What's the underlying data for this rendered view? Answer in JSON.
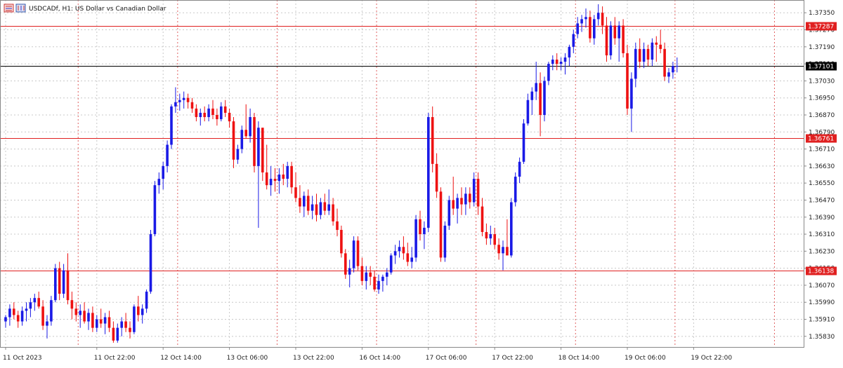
{
  "header": {
    "symbol": "USDCADf",
    "timeframe": "H1:",
    "description": "US Dollar vs Canadian Dollar"
  },
  "colors": {
    "bull": "#1a1ae6",
    "bear": "#ee1111",
    "level_line": "#e02020",
    "current_line": "#000000",
    "grid": "#c8c8c8",
    "separator": "#e06060"
  },
  "chart_data": {
    "type": "candlestick",
    "title": "",
    "ylim": [
      1.3578,
      1.3741
    ],
    "y_ticks": [
      "1.37350",
      "1.37270",
      "1.37190",
      "1.37110",
      "1.37030",
      "1.36950",
      "1.36870",
      "1.36790",
      "1.36710",
      "1.36630",
      "1.36550",
      "1.36470",
      "1.36390",
      "1.36310",
      "1.36230",
      "1.36150",
      "1.36070",
      "1.35990",
      "1.35910",
      "1.35830"
    ],
    "x_labels": [
      {
        "label": "11 Oct 2023",
        "bar": 0
      },
      {
        "label": "11 Oct 22:00",
        "bar": 22
      },
      {
        "label": "12 Oct 14:00",
        "bar": 38
      },
      {
        "label": "13 Oct 06:00",
        "bar": 54
      },
      {
        "label": "13 Oct 22:00",
        "bar": 70
      },
      {
        "label": "16 Oct 14:00",
        "bar": 86
      },
      {
        "label": "17 Oct 06:00",
        "bar": 102
      },
      {
        "label": "17 Oct 22:00",
        "bar": 118
      },
      {
        "label": "18 Oct 14:00",
        "bar": 134
      },
      {
        "label": "19 Oct 06:00",
        "bar": 150
      },
      {
        "label": "19 Oct 22:00",
        "bar": 166
      }
    ],
    "day_separators": [
      18,
      42,
      66,
      90,
      114,
      138,
      162,
      186
    ],
    "horizontal_levels": [
      {
        "label": "1.37287",
        "value": 1.37287,
        "kind": "level"
      },
      {
        "label": "1.37101",
        "value": 1.37101,
        "kind": "current"
      },
      {
        "label": "1.36761",
        "value": 1.36761,
        "kind": "level"
      },
      {
        "label": "1.36138",
        "value": 1.36138,
        "kind": "level"
      }
    ],
    "candles": [
      [
        1.359,
        1.3593,
        1.3587,
        1.3592
      ],
      [
        1.3592,
        1.3598,
        1.3588,
        1.3596
      ],
      [
        1.3596,
        1.3599,
        1.3591,
        1.3593
      ],
      [
        1.3593,
        1.3595,
        1.3587,
        1.359
      ],
      [
        1.359,
        1.3597,
        1.3588,
        1.3595
      ],
      [
        1.3595,
        1.3599,
        1.359,
        1.3596
      ],
      [
        1.3596,
        1.3601,
        1.3592,
        1.3599
      ],
      [
        1.3599,
        1.3603,
        1.3595,
        1.3601
      ],
      [
        1.3601,
        1.3604,
        1.3596,
        1.3597
      ],
      [
        1.3597,
        1.36,
        1.3586,
        1.3588
      ],
      [
        1.3588,
        1.3593,
        1.3582,
        1.359
      ],
      [
        1.359,
        1.3602,
        1.3588,
        1.36
      ],
      [
        1.36,
        1.3617,
        1.3599,
        1.3615
      ],
      [
        1.3615,
        1.3618,
        1.36,
        1.3603
      ],
      [
        1.3603,
        1.3617,
        1.3601,
        1.3614
      ],
      [
        1.3614,
        1.3622,
        1.3598,
        1.36
      ],
      [
        1.36,
        1.3604,
        1.3591,
        1.3596
      ],
      [
        1.3596,
        1.3599,
        1.359,
        1.3593
      ],
      [
        1.3593,
        1.3598,
        1.3587,
        1.3595
      ],
      [
        1.3595,
        1.3599,
        1.3589,
        1.359
      ],
      [
        1.359,
        1.3596,
        1.3586,
        1.3594
      ],
      [
        1.3594,
        1.3597,
        1.3585,
        1.3587
      ],
      [
        1.3587,
        1.3593,
        1.3585,
        1.3591
      ],
      [
        1.3591,
        1.3596,
        1.3587,
        1.3589
      ],
      [
        1.3589,
        1.3594,
        1.3584,
        1.3592
      ],
      [
        1.3592,
        1.3595,
        1.3585,
        1.3587
      ],
      [
        1.3587,
        1.359,
        1.358,
        1.3581
      ],
      [
        1.3581,
        1.3589,
        1.358,
        1.3587
      ],
      [
        1.3587,
        1.3592,
        1.3583,
        1.359
      ],
      [
        1.359,
        1.3594,
        1.3585,
        1.3587
      ],
      [
        1.3587,
        1.359,
        1.3582,
        1.3585
      ],
      [
        1.3585,
        1.3598,
        1.3584,
        1.3597
      ],
      [
        1.3597,
        1.3602,
        1.359,
        1.3593
      ],
      [
        1.3593,
        1.3598,
        1.3589,
        1.3596
      ],
      [
        1.3596,
        1.3605,
        1.3594,
        1.3604
      ],
      [
        1.3604,
        1.3633,
        1.3603,
        1.3631
      ],
      [
        1.3631,
        1.3656,
        1.363,
        1.3654
      ],
      [
        1.3654,
        1.366,
        1.365,
        1.3657
      ],
      [
        1.3657,
        1.3665,
        1.3652,
        1.3663
      ],
      [
        1.3663,
        1.3675,
        1.366,
        1.3673
      ],
      [
        1.3673,
        1.3692,
        1.3671,
        1.3691
      ],
      [
        1.3691,
        1.37,
        1.3688,
        1.3693
      ],
      [
        1.3693,
        1.3697,
        1.3689,
        1.3694
      ],
      [
        1.3694,
        1.3698,
        1.369,
        1.3695
      ],
      [
        1.3695,
        1.3697,
        1.369,
        1.3693
      ],
      [
        1.3693,
        1.3695,
        1.3688,
        1.369
      ],
      [
        1.369,
        1.3692,
        1.3684,
        1.3686
      ],
      [
        1.3686,
        1.369,
        1.3682,
        1.3688
      ],
      [
        1.3688,
        1.3691,
        1.3684,
        1.3686
      ],
      [
        1.3686,
        1.3692,
        1.3684,
        1.369
      ],
      [
        1.369,
        1.3694,
        1.3685,
        1.3687
      ],
      [
        1.3687,
        1.369,
        1.3682,
        1.3685
      ],
      [
        1.3685,
        1.3693,
        1.3684,
        1.3691
      ],
      [
        1.3691,
        1.3694,
        1.3686,
        1.3688
      ],
      [
        1.3688,
        1.369,
        1.3681,
        1.3684
      ],
      [
        1.3684,
        1.3686,
        1.3662,
        1.3666
      ],
      [
        1.3666,
        1.3673,
        1.3664,
        1.3671
      ],
      [
        1.3671,
        1.3682,
        1.3669,
        1.368
      ],
      [
        1.368,
        1.3692,
        1.3676,
        1.3677
      ],
      [
        1.3677,
        1.369,
        1.3674,
        1.3686
      ],
      [
        1.3686,
        1.3688,
        1.366,
        1.3663
      ],
      [
        1.3663,
        1.3684,
        1.3634,
        1.3681
      ],
      [
        1.3681,
        1.3681,
        1.3656,
        1.366
      ],
      [
        1.366,
        1.3673,
        1.3652,
        1.3654
      ],
      [
        1.3654,
        1.3663,
        1.3649,
        1.3657
      ],
      [
        1.3657,
        1.3662,
        1.3651,
        1.3656
      ],
      [
        1.3656,
        1.3662,
        1.365,
        1.3659
      ],
      [
        1.3659,
        1.3664,
        1.3654,
        1.3657
      ],
      [
        1.3657,
        1.3665,
        1.3653,
        1.3663
      ],
      [
        1.3663,
        1.3665,
        1.365,
        1.3653
      ],
      [
        1.3653,
        1.366,
        1.3646,
        1.3648
      ],
      [
        1.3648,
        1.3654,
        1.3641,
        1.3644
      ],
      [
        1.3644,
        1.3651,
        1.3639,
        1.3649
      ],
      [
        1.3649,
        1.3652,
        1.364,
        1.3642
      ],
      [
        1.3642,
        1.3649,
        1.3638,
        1.3645
      ],
      [
        1.3645,
        1.365,
        1.3637,
        1.364
      ],
      [
        1.364,
        1.3648,
        1.3638,
        1.3646
      ],
      [
        1.3646,
        1.365,
        1.364,
        1.3642
      ],
      [
        1.3642,
        1.3652,
        1.364,
        1.3645
      ],
      [
        1.3645,
        1.3648,
        1.3635,
        1.3637
      ],
      [
        1.3637,
        1.3643,
        1.363,
        1.3633
      ],
      [
        1.3633,
        1.3635,
        1.362,
        1.3622
      ],
      [
        1.3622,
        1.3624,
        1.361,
        1.3612
      ],
      [
        1.3612,
        1.3619,
        1.3606,
        1.3615
      ],
      [
        1.3615,
        1.363,
        1.3613,
        1.3628
      ],
      [
        1.3628,
        1.363,
        1.3614,
        1.3616
      ],
      [
        1.3616,
        1.362,
        1.3607,
        1.3609
      ],
      [
        1.3609,
        1.3616,
        1.3605,
        1.3613
      ],
      [
        1.3613,
        1.3616,
        1.3607,
        1.3611
      ],
      [
        1.3611,
        1.3614,
        1.3604,
        1.3605
      ],
      [
        1.3605,
        1.3612,
        1.3603,
        1.3609
      ],
      [
        1.3609,
        1.3612,
        1.3604,
        1.3611
      ],
      [
        1.3611,
        1.3615,
        1.3607,
        1.3613
      ],
      [
        1.3613,
        1.3622,
        1.3612,
        1.3621
      ],
      [
        1.3621,
        1.3626,
        1.3617,
        1.3623
      ],
      [
        1.3623,
        1.3628,
        1.362,
        1.3625
      ],
      [
        1.3625,
        1.363,
        1.3619,
        1.3622
      ],
      [
        1.3622,
        1.3627,
        1.3616,
        1.3618
      ],
      [
        1.3618,
        1.3625,
        1.3615,
        1.362
      ],
      [
        1.362,
        1.364,
        1.3618,
        1.3638
      ],
      [
        1.3638,
        1.3642,
        1.3628,
        1.3631
      ],
      [
        1.3631,
        1.3637,
        1.3624,
        1.3634
      ],
      [
        1.3634,
        1.3688,
        1.3632,
        1.3686
      ],
      [
        1.3686,
        1.3691,
        1.366,
        1.3664
      ],
      [
        1.3664,
        1.3669,
        1.3648,
        1.3651
      ],
      [
        1.3651,
        1.3653,
        1.3618,
        1.362
      ],
      [
        1.362,
        1.3637,
        1.3618,
        1.3635
      ],
      [
        1.3635,
        1.3649,
        1.3633,
        1.3647
      ],
      [
        1.3647,
        1.3658,
        1.364,
        1.3643
      ],
      [
        1.3643,
        1.365,
        1.3636,
        1.3648
      ],
      [
        1.3648,
        1.3653,
        1.364,
        1.3645
      ],
      [
        1.3645,
        1.3653,
        1.364,
        1.365
      ],
      [
        1.365,
        1.3653,
        1.3643,
        1.3646
      ],
      [
        1.3646,
        1.366,
        1.3644,
        1.3657
      ],
      [
        1.3657,
        1.366,
        1.364,
        1.3644
      ],
      [
        1.3644,
        1.3648,
        1.363,
        1.3632
      ],
      [
        1.3632,
        1.3636,
        1.3626,
        1.3629
      ],
      [
        1.3629,
        1.3635,
        1.3626,
        1.3631
      ],
      [
        1.3631,
        1.3634,
        1.3624,
        1.3626
      ],
      [
        1.3626,
        1.3629,
        1.3619,
        1.3622
      ],
      [
        1.3622,
        1.3628,
        1.3614,
        1.3625
      ],
      [
        1.3625,
        1.3638,
        1.3622,
        1.3621
      ],
      [
        1.3621,
        1.3648,
        1.362,
        1.3646
      ],
      [
        1.3646,
        1.366,
        1.3644,
        1.3658
      ],
      [
        1.3658,
        1.3667,
        1.3655,
        1.3665
      ],
      [
        1.3665,
        1.3685,
        1.3664,
        1.3683
      ],
      [
        1.3683,
        1.3697,
        1.3682,
        1.3694
      ],
      [
        1.3694,
        1.37,
        1.3687,
        1.3698
      ],
      [
        1.3698,
        1.3712,
        1.3694,
        1.3702
      ],
      [
        1.3702,
        1.3707,
        1.3677,
        1.3687
      ],
      [
        1.3687,
        1.3705,
        1.3684,
        1.3703
      ],
      [
        1.3703,
        1.3712,
        1.3701,
        1.3711
      ],
      [
        1.3711,
        1.3715,
        1.3708,
        1.3713
      ],
      [
        1.3713,
        1.3716,
        1.3708,
        1.3711
      ],
      [
        1.3711,
        1.3714,
        1.3708,
        1.3712
      ],
      [
        1.3712,
        1.3716,
        1.3706,
        1.3714
      ],
      [
        1.3714,
        1.372,
        1.371,
        1.3719
      ],
      [
        1.3719,
        1.3727,
        1.3716,
        1.3725
      ],
      [
        1.3725,
        1.3733,
        1.3723,
        1.373
      ],
      [
        1.373,
        1.3734,
        1.3726,
        1.3732
      ],
      [
        1.3732,
        1.3737,
        1.3728,
        1.3733
      ],
      [
        1.3733,
        1.3736,
        1.3721,
        1.3723
      ],
      [
        1.3723,
        1.3734,
        1.372,
        1.3732
      ],
      [
        1.3732,
        1.3739,
        1.3729,
        1.3735
      ],
      [
        1.3735,
        1.3738,
        1.3725,
        1.3729
      ],
      [
        1.3729,
        1.3733,
        1.3712,
        1.3715
      ],
      [
        1.3715,
        1.3731,
        1.3713,
        1.3729
      ],
      [
        1.3729,
        1.3733,
        1.372,
        1.3723
      ],
      [
        1.3723,
        1.3731,
        1.3712,
        1.3729
      ],
      [
        1.3729,
        1.3732,
        1.3714,
        1.3716
      ],
      [
        1.3716,
        1.372,
        1.3687,
        1.369
      ],
      [
        1.369,
        1.3707,
        1.3679,
        1.3704
      ],
      [
        1.3704,
        1.3721,
        1.37,
        1.3718
      ],
      [
        1.3718,
        1.3723,
        1.3709,
        1.3712
      ],
      [
        1.3712,
        1.3721,
        1.3709,
        1.3718
      ],
      [
        1.3718,
        1.372,
        1.371,
        1.3713
      ],
      [
        1.3713,
        1.3723,
        1.371,
        1.3721
      ],
      [
        1.3721,
        1.3724,
        1.3712,
        1.372
      ],
      [
        1.372,
        1.3727,
        1.3716,
        1.3718
      ],
      [
        1.3718,
        1.3721,
        1.3703,
        1.3705
      ],
      [
        1.3705,
        1.3709,
        1.3702,
        1.3707
      ],
      [
        1.3707,
        1.3712,
        1.3704,
        1.371
      ],
      [
        1.371,
        1.3714,
        1.3707,
        1.371
      ]
    ]
  }
}
